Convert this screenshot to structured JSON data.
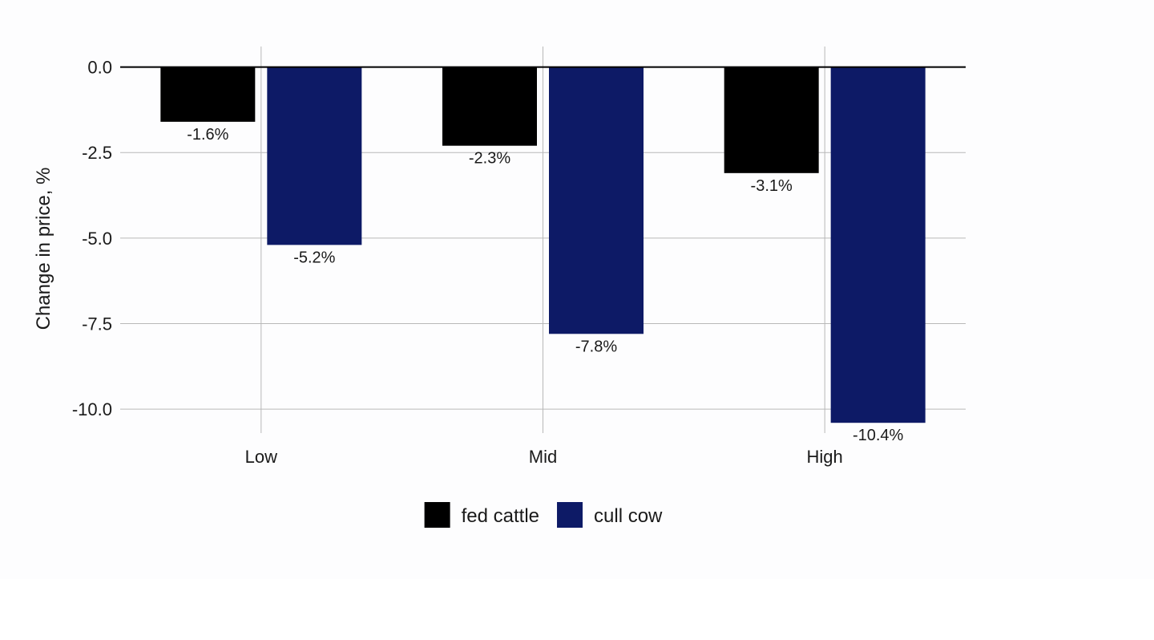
{
  "chart_data": {
    "type": "bar",
    "title": "",
    "xlabel": "",
    "ylabel": "Change in price, %",
    "categories": [
      "Low",
      "Mid",
      "High"
    ],
    "series": [
      {
        "name": "fed cattle",
        "color": "#000000",
        "values": [
          -1.6,
          -2.3,
          -3.1
        ],
        "labels": [
          "-1.6%",
          "-2.3%",
          "-3.1%"
        ]
      },
      {
        "name": "cull cow",
        "color": "#0d1a66",
        "values": [
          -5.2,
          -7.8,
          -10.4
        ],
        "labels": [
          "-5.2%",
          "-7.8%",
          "-10.4%"
        ]
      }
    ],
    "ylim": [
      -10.7,
      0.6
    ],
    "yticks": [
      0,
      -2.5,
      -5,
      -7.5,
      -10
    ],
    "ytick_labels": [
      "0.0",
      "-2.5",
      "-5.0",
      "-7.5",
      "-10.0"
    ],
    "grid": true,
    "legend_position": "bottom"
  }
}
